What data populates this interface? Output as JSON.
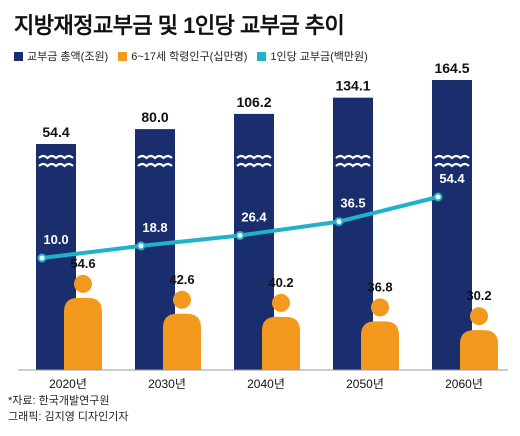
{
  "title": "지방재정교부금 및 1인당 교부금 추이",
  "source_line": "*자료: 한국개발연구원",
  "credit_line": "그래픽: 김지영 디자인기자",
  "colors": {
    "total_bar": "#1a2e6e",
    "population": "#f39a1e",
    "per_capita_line": "#1fb2c9",
    "axis": "#999999"
  },
  "chart_data": {
    "type": "bar",
    "categories": [
      "2020년",
      "2030년",
      "2040년",
      "2050년",
      "2060년"
    ],
    "series": [
      {
        "name": "교부금 총액(조원)",
        "kind": "bar",
        "values": [
          54.4,
          80.0,
          106.2,
          134.1,
          164.5
        ],
        "labels": [
          "54.4",
          "80.0",
          "106.2",
          "134.1",
          "164.5"
        ]
      },
      {
        "name": "6~17세 학령인구(십만명)",
        "kind": "person-bar",
        "values": [
          54.6,
          42.6,
          40.2,
          36.8,
          30.2
        ],
        "labels": [
          "54.6",
          "42.6",
          "40.2",
          "36.8",
          "30.2"
        ]
      },
      {
        "name": "1인당 교부금(백만원)",
        "kind": "line",
        "values": [
          10.0,
          18.8,
          26.4,
          36.5,
          54.4
        ],
        "labels": [
          "10.0",
          "18.8",
          "26.4",
          "36.5",
          "54.4"
        ]
      }
    ],
    "axis_break": true,
    "grid": false,
    "legend_position": "top-left"
  }
}
